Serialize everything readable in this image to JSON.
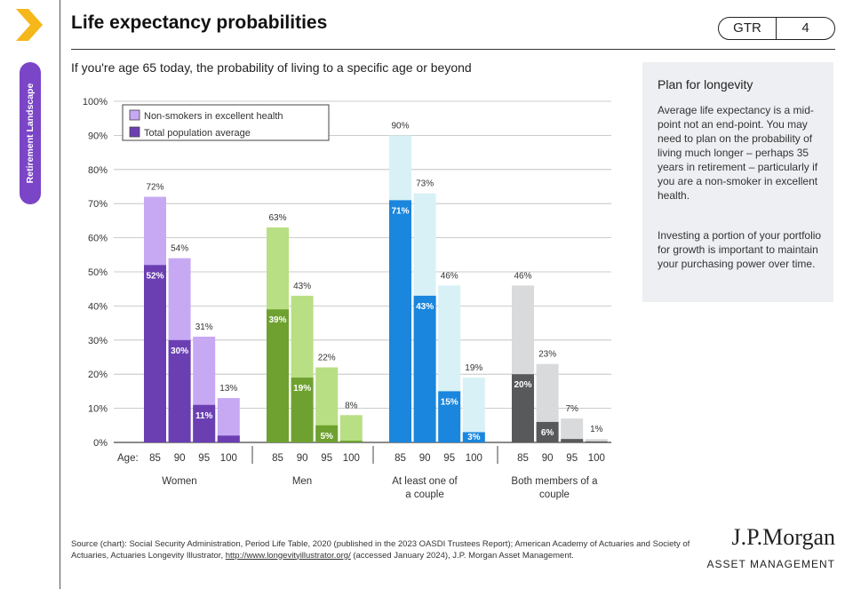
{
  "header": {
    "title": "Life expectancy probabilities",
    "badge_code": "GTR",
    "badge_page": "4"
  },
  "side_tab": {
    "label": "Retirement Landscape"
  },
  "sidebar": {
    "title": "Plan for longevity",
    "paragraph1": "Average life expectancy is a mid-point not an end-point. You may need to plan on the probability of living much longer – perhaps 35 years in retirement – particularly if you are a non-smoker in excellent health.",
    "paragraph2": "Investing a portion of your portfolio for growth is important to maintain your purchasing power over time."
  },
  "source_note": {
    "before_link": "Source (chart): Social Security Administration, Period Life Table, 2020 (published in the 2023 OASDI Trustees Report); American Academy of Actuaries and Society of Actuaries, Actuaries Longevity Illustrator, ",
    "link": "http://www.longevityillustrator.org/",
    "after_link": " (accessed January 2024), J.P. Morgan Asset Management."
  },
  "brand": {
    "name": "J.P.Morgan",
    "sub": "ASSET MANAGEMENT"
  },
  "colors": {
    "women_dark": "#6b3fb2",
    "women_light": "#c7a9f3",
    "men_dark": "#6ea12f",
    "men_light": "#b8df83",
    "atleast_dark": "#1a86dd",
    "atleast_light": "#d8f1f6",
    "both_dark": "#58595b",
    "both_light": "#d9dadb",
    "grid": "#bbbbbb",
    "legend_border": "#444444",
    "side_tab": "#7b45c7",
    "sidebar_bg": "#eeeff2"
  },
  "chart_data": {
    "type": "bar",
    "subtitle": "If you're age 65 today, the probability of living to a specific age or beyond",
    "age_label": "Age:",
    "ylim": [
      0,
      100
    ],
    "y_ticks": [
      "0%",
      "10%",
      "20%",
      "30%",
      "40%",
      "50%",
      "60%",
      "70%",
      "80%",
      "90%",
      "100%"
    ],
    "grid": true,
    "legend_position": "top-left",
    "legend": [
      "Non-smokers in excellent health",
      "Total population average"
    ],
    "groups": [
      {
        "name": "Women",
        "ages": [
          "85",
          "90",
          "95",
          "100"
        ],
        "non_smokers": [
          72,
          54,
          31,
          13
        ],
        "non_smokers_labels": [
          "72%",
          "54%",
          "31%",
          "13%"
        ],
        "total_population": [
          52,
          30,
          11,
          2
        ],
        "total_population_labels": [
          "52%",
          "30%",
          "11%",
          ""
        ]
      },
      {
        "name": "Men",
        "ages": [
          "85",
          "90",
          "95",
          "100"
        ],
        "non_smokers": [
          63,
          43,
          22,
          8
        ],
        "non_smokers_labels": [
          "63%",
          "43%",
          "22%",
          "8%"
        ],
        "total_population": [
          39,
          19,
          5,
          0.5
        ],
        "total_population_labels": [
          "39%",
          "19%",
          "5%",
          ""
        ]
      },
      {
        "name": "At least one of a couple",
        "ages": [
          "85",
          "90",
          "95",
          "100"
        ],
        "non_smokers": [
          90,
          73,
          46,
          19
        ],
        "non_smokers_labels": [
          "90%",
          "73%",
          "46%",
          "19%"
        ],
        "total_population": [
          71,
          43,
          15,
          3
        ],
        "total_population_labels": [
          "71%",
          "43%",
          "15%",
          "3%"
        ]
      },
      {
        "name": "Both members of a couple",
        "ages": [
          "85",
          "90",
          "95",
          "100"
        ],
        "non_smokers": [
          46,
          23,
          7,
          1
        ],
        "non_smokers_labels": [
          "46%",
          "23%",
          "7%",
          "1%"
        ],
        "total_population": [
          20,
          6,
          1,
          0.3
        ],
        "total_population_labels": [
          "20%",
          "6%",
          "",
          ""
        ]
      }
    ]
  }
}
